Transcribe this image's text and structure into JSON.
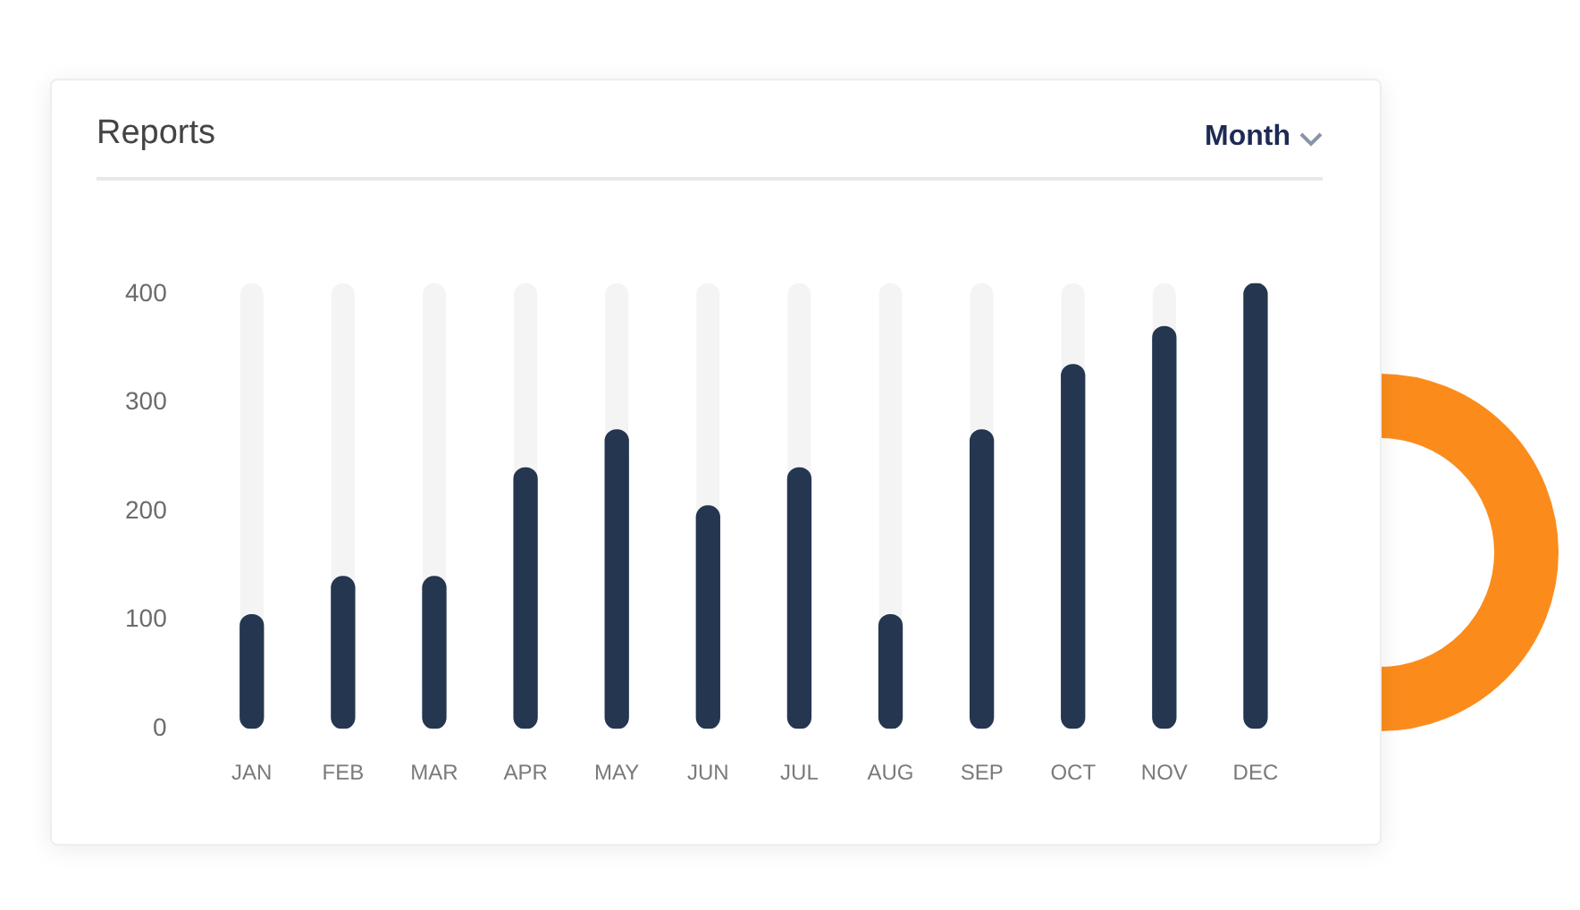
{
  "chart_data": {
    "type": "bar",
    "title": "Reports",
    "annotations": [
      "Month"
    ],
    "categories": [
      "JAN",
      "FEB",
      "MAR",
      "APR",
      "MAY",
      "JUN",
      "JUL",
      "AUG",
      "SEP",
      "OCT",
      "NOV",
      "DEC"
    ],
    "values": [
      105,
      140,
      140,
      240,
      275,
      205,
      240,
      105,
      275,
      335,
      370,
      410
    ],
    "color": "#253650",
    "ylim": [
      0,
      410
    ],
    "yticks": [
      0,
      100,
      200,
      300,
      400
    ],
    "grid": false,
    "legend": false
  }
}
